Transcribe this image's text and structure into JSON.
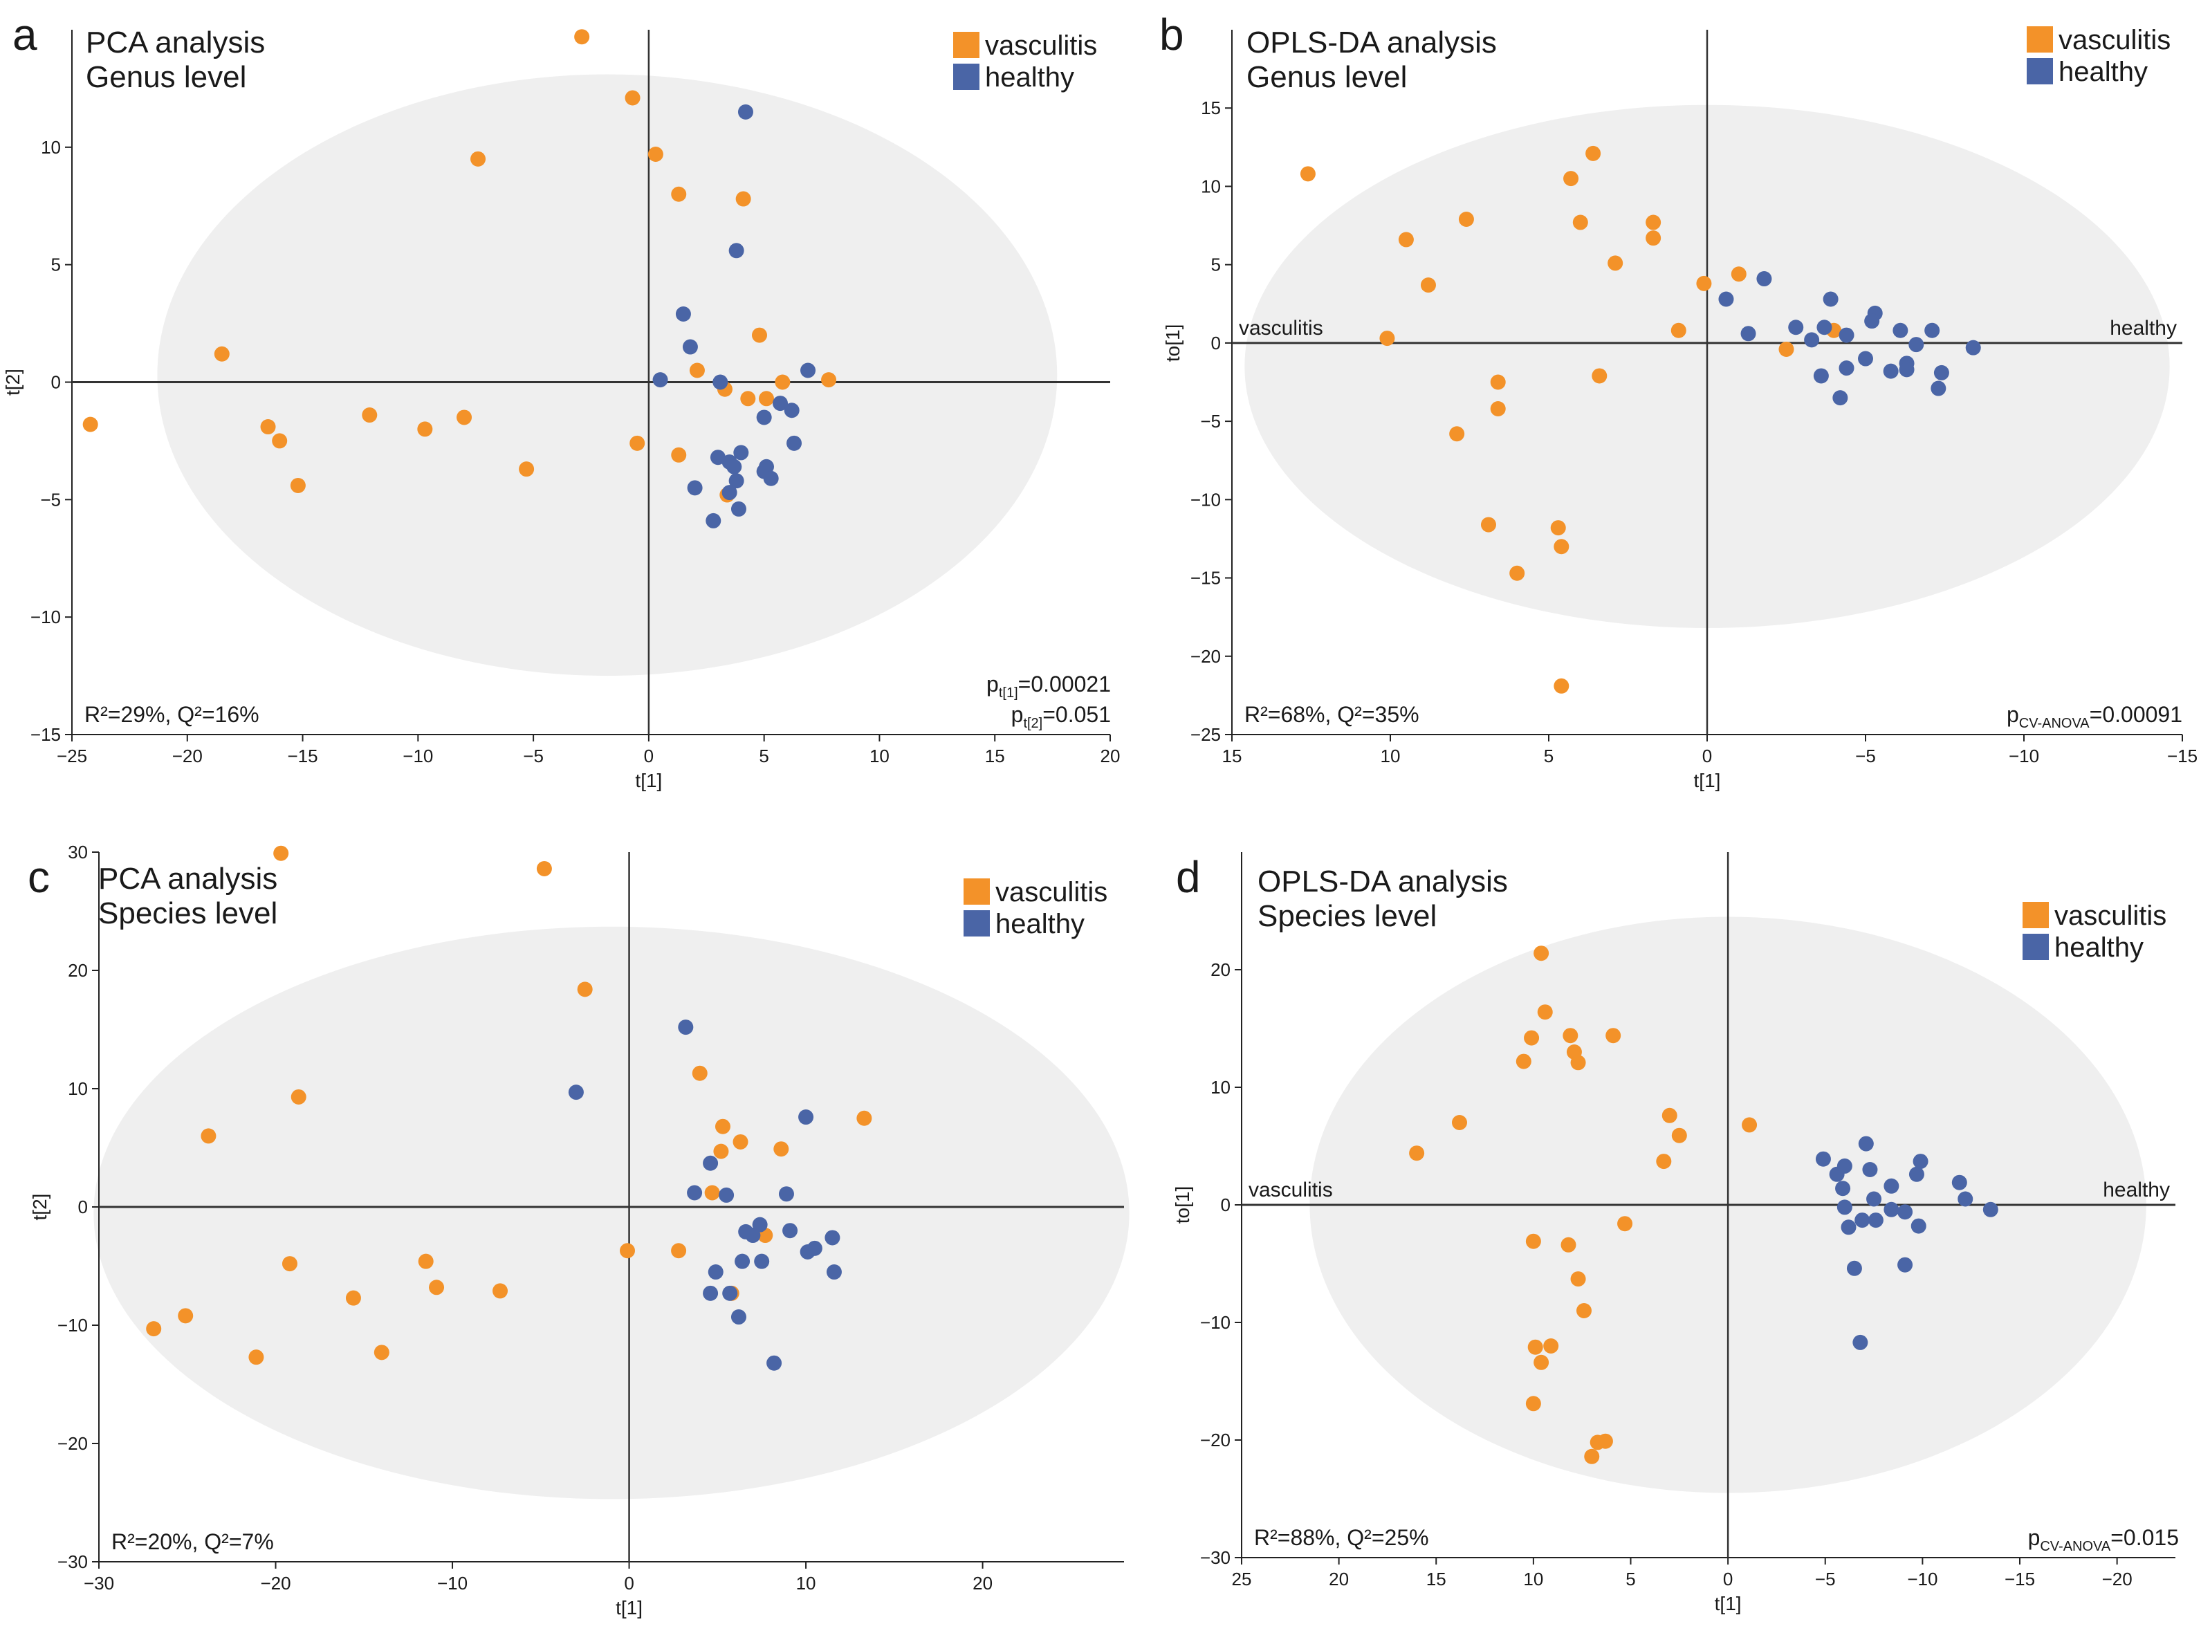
{
  "legend": {
    "vasculitis_label": "vasculitis",
    "healthy_label": "healthy",
    "vasculitis_color": "#f39229",
    "healthy_color": "#4a65a6"
  },
  "ellipse_color": "#efefef",
  "chart_data": [
    {
      "type": "scatter",
      "panel": "a",
      "title": "PCA analysis",
      "subtitle": "Genus level",
      "xlabel": "t[1]",
      "ylabel": "t[2]",
      "xlim": [
        -25,
        20
      ],
      "ylim": [
        -15,
        15
      ],
      "xticks": [
        -25,
        -20,
        -15,
        -10,
        -5,
        0,
        5,
        10,
        15,
        20
      ],
      "xtick_labels": [
        "−25",
        "−20",
        "−15",
        "−10",
        "−5",
        "0",
        "5",
        "10",
        "15",
        "20"
      ],
      "yticks": [
        -15,
        -10,
        -5,
        0,
        5,
        10
      ],
      "ytick_labels": [
        "−15",
        "−10",
        "−5",
        "0",
        "5",
        "10"
      ],
      "stats_left": "R²=29%, Q²=16%",
      "stats_right": [
        "p",
        "t[1]",
        "=0.00021",
        "p",
        "t[2]",
        "=0.051"
      ],
      "side_labels": [],
      "ellipse": {
        "cx": -1.8,
        "cy": 0.3,
        "rx": 19.5,
        "ry": 12.8
      },
      "series": [
        {
          "name": "vasculitis",
          "points": [
            [
              -2.9,
              14.7
            ],
            [
              -0.7,
              12.1
            ],
            [
              0.3,
              9.7
            ],
            [
              -7.4,
              9.5
            ],
            [
              1.3,
              8.0
            ],
            [
              4.1,
              7.8
            ],
            [
              4.8,
              2.0
            ],
            [
              -18.5,
              1.2
            ],
            [
              2.1,
              0.5
            ],
            [
              5.8,
              0.0
            ],
            [
              7.8,
              0.1
            ],
            [
              3.3,
              -0.3
            ],
            [
              4.3,
              -0.7
            ],
            [
              5.1,
              -0.7
            ],
            [
              -24.2,
              -1.8
            ],
            [
              -16.5,
              -1.9
            ],
            [
              -12.1,
              -1.4
            ],
            [
              -9.7,
              -2.0
            ],
            [
              -8.0,
              -1.5
            ],
            [
              -16.0,
              -2.5
            ],
            [
              -0.5,
              -2.6
            ],
            [
              1.3,
              -3.1
            ],
            [
              -5.3,
              -3.7
            ],
            [
              -15.2,
              -4.4
            ],
            [
              3.4,
              -4.8
            ]
          ]
        },
        {
          "name": "healthy",
          "points": [
            [
              4.2,
              11.5
            ],
            [
              3.8,
              5.6
            ],
            [
              1.5,
              2.9
            ],
            [
              1.8,
              1.5
            ],
            [
              0.5,
              0.1
            ],
            [
              3.1,
              0.0
            ],
            [
              6.9,
              0.5
            ],
            [
              5.7,
              -0.9
            ],
            [
              6.2,
              -1.2
            ],
            [
              5.0,
              -1.5
            ],
            [
              6.3,
              -2.6
            ],
            [
              3.0,
              -3.2
            ],
            [
              3.5,
              -3.4
            ],
            [
              4.0,
              -3.0
            ],
            [
              3.7,
              -3.6
            ],
            [
              5.1,
              -3.6
            ],
            [
              5.0,
              -3.8
            ],
            [
              3.8,
              -4.2
            ],
            [
              5.3,
              -4.1
            ],
            [
              2.0,
              -4.5
            ],
            [
              3.5,
              -4.7
            ],
            [
              3.9,
              -5.4
            ],
            [
              2.8,
              -5.9
            ]
          ]
        }
      ]
    },
    {
      "type": "scatter",
      "panel": "b",
      "title": "OPLS-DA analysis",
      "subtitle": "Genus level",
      "xlabel": "t[1]",
      "ylabel": "to[1]",
      "xlim": [
        15,
        -15
      ],
      "ylim": [
        -25,
        20
      ],
      "xticks": [
        15,
        10,
        5,
        0,
        -5,
        -10,
        -15
      ],
      "xtick_labels": [
        "15",
        "10",
        "5",
        "0",
        "−5",
        "−10",
        "−15"
      ],
      "yticks": [
        -25,
        -20,
        -15,
        -10,
        -5,
        0,
        5,
        10,
        15
      ],
      "ytick_labels": [
        "−25",
        "−20",
        "−15",
        "−10",
        "−5",
        "0",
        "5",
        "10",
        "15"
      ],
      "stats_left": "R²=68%, Q²=35%",
      "stats_right": [
        "p",
        "CV-ANOVA",
        "=0.00091"
      ],
      "side_labels": [
        "vasculitis",
        "healthy"
      ],
      "ellipse": {
        "cx": 0.0,
        "cy": -1.5,
        "rx": 14.6,
        "ry": 16.7
      },
      "series": [
        {
          "name": "vasculitis",
          "points": [
            [
              12.6,
              10.8
            ],
            [
              3.6,
              12.1
            ],
            [
              4.3,
              10.5
            ],
            [
              4.0,
              7.7
            ],
            [
              7.6,
              7.9
            ],
            [
              1.7,
              7.7
            ],
            [
              1.7,
              6.7
            ],
            [
              9.5,
              6.6
            ],
            [
              2.9,
              5.1
            ],
            [
              8.8,
              3.7
            ],
            [
              -1.0,
              4.4
            ],
            [
              0.1,
              3.8
            ],
            [
              10.1,
              0.3
            ],
            [
              0.9,
              0.8
            ],
            [
              -4.0,
              0.8
            ],
            [
              -2.5,
              -0.4
            ],
            [
              3.4,
              -2.1
            ],
            [
              6.6,
              -2.5
            ],
            [
              6.6,
              -4.2
            ],
            [
              7.9,
              -5.8
            ],
            [
              6.9,
              -11.6
            ],
            [
              4.7,
              -11.8
            ],
            [
              4.6,
              -13.0
            ],
            [
              6.0,
              -14.7
            ],
            [
              4.6,
              -21.9
            ]
          ]
        },
        {
          "name": "healthy",
          "points": [
            [
              -1.8,
              4.1
            ],
            [
              -0.6,
              2.8
            ],
            [
              -3.9,
              2.8
            ],
            [
              -5.3,
              1.9
            ],
            [
              -2.8,
              1.0
            ],
            [
              -3.7,
              1.0
            ],
            [
              -4.4,
              0.5
            ],
            [
              -6.1,
              0.8
            ],
            [
              -7.1,
              0.8
            ],
            [
              -1.3,
              0.6
            ],
            [
              -3.3,
              0.2
            ],
            [
              -5.2,
              1.4
            ],
            [
              -6.6,
              -0.1
            ],
            [
              -8.4,
              -0.3
            ],
            [
              -5.0,
              -1.0
            ],
            [
              -6.3,
              -1.3
            ],
            [
              -6.3,
              -1.7
            ],
            [
              -4.4,
              -1.6
            ],
            [
              -5.8,
              -1.8
            ],
            [
              -3.6,
              -2.1
            ],
            [
              -7.4,
              -1.9
            ],
            [
              -7.3,
              -2.9
            ],
            [
              -4.2,
              -3.5
            ]
          ]
        }
      ]
    },
    {
      "type": "scatter",
      "panel": "c",
      "title": "PCA analysis",
      "subtitle": "Species level",
      "xlabel": "t[1]",
      "ylabel": "t[2]",
      "xlim": [
        -30,
        28
      ],
      "ylim": [
        -30,
        30
      ],
      "xticks": [
        -30,
        -20,
        -10,
        0,
        10,
        20
      ],
      "xtick_labels": [
        "−30",
        "−20",
        "−10",
        "0",
        "10",
        "20"
      ],
      "yticks": [
        -30,
        -20,
        -10,
        0,
        10,
        20,
        30
      ],
      "ytick_labels": [
        "−30",
        "−20",
        "−10",
        "0",
        "10",
        "20",
        "30"
      ],
      "stats_left": "R²=20%, Q²=7%",
      "stats_right": [],
      "side_labels": [],
      "ellipse": {
        "cx": -1.0,
        "cy": -0.5,
        "rx": 29.3,
        "ry": 24.2
      },
      "series": [
        {
          "name": "vasculitis",
          "points": [
            [
              -19.7,
              29.9
            ],
            [
              -4.8,
              28.6
            ],
            [
              -2.5,
              18.4
            ],
            [
              -18.7,
              9.3
            ],
            [
              4.0,
              11.3
            ],
            [
              13.3,
              7.5
            ],
            [
              5.3,
              6.8
            ],
            [
              6.3,
              5.5
            ],
            [
              8.6,
              4.9
            ],
            [
              5.2,
              4.7
            ],
            [
              -23.8,
              6.0
            ],
            [
              4.7,
              1.2
            ],
            [
              -0.1,
              -3.7
            ],
            [
              2.8,
              -3.7
            ],
            [
              7.7,
              -2.4
            ],
            [
              -11.5,
              -4.6
            ],
            [
              -19.2,
              -4.8
            ],
            [
              -10.9,
              -6.8
            ],
            [
              -7.3,
              -7.1
            ],
            [
              -15.6,
              -7.7
            ],
            [
              5.8,
              -7.3
            ],
            [
              -25.1,
              -9.2
            ],
            [
              -26.9,
              -10.3
            ],
            [
              -21.1,
              -12.7
            ],
            [
              -14.0,
              -12.3
            ]
          ]
        },
        {
          "name": "healthy",
          "points": [
            [
              3.2,
              15.2
            ],
            [
              -3.0,
              9.7
            ],
            [
              10.0,
              7.6
            ],
            [
              4.6,
              3.7
            ],
            [
              3.7,
              1.2
            ],
            [
              5.5,
              1.0
            ],
            [
              8.9,
              1.1
            ],
            [
              7.4,
              -1.5
            ],
            [
              9.1,
              -2.0
            ],
            [
              6.6,
              -2.1
            ],
            [
              7.0,
              -2.4
            ],
            [
              10.5,
              -3.5
            ],
            [
              10.1,
              -3.8
            ],
            [
              11.5,
              -2.6
            ],
            [
              7.5,
              -4.6
            ],
            [
              6.4,
              -4.6
            ],
            [
              11.6,
              -5.5
            ],
            [
              4.9,
              -5.5
            ],
            [
              4.6,
              -7.3
            ],
            [
              5.7,
              -7.3
            ],
            [
              6.2,
              -9.3
            ],
            [
              8.2,
              -13.2
            ]
          ]
        }
      ]
    },
    {
      "type": "scatter",
      "panel": "d",
      "title": "OPLS-DA analysis",
      "subtitle": "Species level",
      "xlabel": "t[1]",
      "ylabel": "to[1]",
      "xlim": [
        25,
        -23
      ],
      "ylim": [
        -30,
        30
      ],
      "xticks": [
        25,
        20,
        15,
        10,
        5,
        0,
        -5,
        -10,
        -15,
        -20
      ],
      "xtick_labels": [
        "25",
        "20",
        "15",
        "10",
        "5",
        "0",
        "−5",
        "−10",
        "−15",
        "−20"
      ],
      "yticks": [
        -30,
        -20,
        -10,
        0,
        10,
        20
      ],
      "ytick_labels": [
        "−30",
        "−20",
        "−10",
        "0",
        "10",
        "20"
      ],
      "stats_left": "R²=88%, Q²=25%",
      "stats_right": [
        "p",
        "CV-ANOVA",
        "=0.015"
      ],
      "side_labels": [
        "vasculitis",
        "healthy"
      ],
      "ellipse": {
        "cx": 0.0,
        "cy": 0.0,
        "rx": 21.5,
        "ry": 24.5
      },
      "series": [
        {
          "name": "vasculitis",
          "points": [
            [
              9.6,
              21.4
            ],
            [
              9.4,
              16.4
            ],
            [
              8.1,
              14.4
            ],
            [
              10.1,
              14.2
            ],
            [
              7.9,
              13.0
            ],
            [
              7.7,
              12.1
            ],
            [
              5.9,
              14.4
            ],
            [
              10.5,
              12.2
            ],
            [
              3.0,
              7.6
            ],
            [
              2.5,
              5.9
            ],
            [
              13.8,
              7.0
            ],
            [
              16.0,
              4.4
            ],
            [
              -1.1,
              6.8
            ],
            [
              3.3,
              3.7
            ],
            [
              5.3,
              -1.6
            ],
            [
              8.2,
              -3.4
            ],
            [
              10.0,
              -3.1
            ],
            [
              7.7,
              -6.3
            ],
            [
              7.4,
              -9.0
            ],
            [
              9.9,
              -12.1
            ],
            [
              9.1,
              -12.0
            ],
            [
              9.6,
              -13.4
            ],
            [
              10.0,
              -16.9
            ],
            [
              6.7,
              -20.2
            ],
            [
              6.3,
              -20.1
            ],
            [
              7.0,
              -21.4
            ]
          ]
        },
        {
          "name": "healthy",
          "points": [
            [
              -7.1,
              5.2
            ],
            [
              -4.9,
              3.9
            ],
            [
              -5.6,
              2.6
            ],
            [
              -6.0,
              3.3
            ],
            [
              -7.3,
              3.0
            ],
            [
              -9.9,
              3.7
            ],
            [
              -9.7,
              2.6
            ],
            [
              -11.9,
              1.9
            ],
            [
              -8.4,
              1.6
            ],
            [
              -5.9,
              1.4
            ],
            [
              -7.5,
              0.5
            ],
            [
              -12.2,
              0.5
            ],
            [
              -13.5,
              -0.4
            ],
            [
              -6.0,
              -0.2
            ],
            [
              -8.4,
              -0.4
            ],
            [
              -9.1,
              -0.6
            ],
            [
              -6.9,
              -1.3
            ],
            [
              -7.6,
              -1.3
            ],
            [
              -9.8,
              -1.8
            ],
            [
              -6.2,
              -1.9
            ],
            [
              -9.1,
              -5.1
            ],
            [
              -6.5,
              -5.4
            ],
            [
              -6.8,
              -11.7
            ]
          ]
        }
      ]
    }
  ]
}
